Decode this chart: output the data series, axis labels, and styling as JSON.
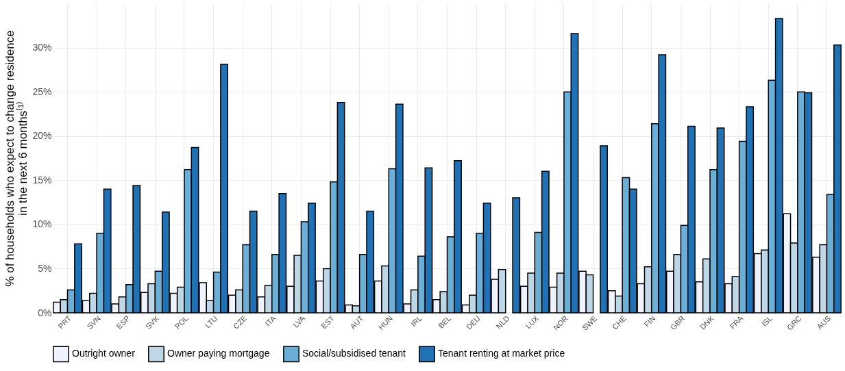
{
  "chart_data": {
    "type": "bar",
    "ylabel": "% of households who expect to change residence\nin the next 6 months⁽¹⁾",
    "categories": [
      "PRT",
      "SVN",
      "ESP",
      "SVK",
      "POL",
      "LTU",
      "CZE",
      "ITA",
      "LVA",
      "EST",
      "AUT",
      "HUN",
      "IRL",
      "BEL",
      "DEU",
      "NLD",
      "LUX",
      "NOR",
      "SWE",
      "CHE",
      "FIN",
      "GBR",
      "DNK",
      "FRA",
      "ISL",
      "GRC",
      "AUS"
    ],
    "series": [
      {
        "name": "Outright owner",
        "color": "#eff3ff",
        "values": [
          1.2,
          1.4,
          1.0,
          2.3,
          2.2,
          3.4,
          2.0,
          1.8,
          3.0,
          3.6,
          0.9,
          3.6,
          1.0,
          1.5,
          0.9,
          3.8,
          3.0,
          2.9,
          4.7,
          2.5,
          3.3,
          4.7,
          3.5,
          3.3,
          6.7,
          11.2,
          6.3
        ]
      },
      {
        "name": "Owner paying mortgage",
        "color": "#bdd7e7",
        "values": [
          1.5,
          2.2,
          1.8,
          3.3,
          2.9,
          1.4,
          2.6,
          3.1,
          6.5,
          5.0,
          0.8,
          5.3,
          2.6,
          2.4,
          2.0,
          4.9,
          4.5,
          4.5,
          4.3,
          1.9,
          5.2,
          6.6,
          6.1,
          4.1,
          7.1,
          7.9,
          7.7
        ]
      },
      {
        "name": "Social/subsidised tenant",
        "color": "#6baed6",
        "values": [
          2.6,
          9.0,
          3.2,
          4.7,
          16.2,
          4.6,
          7.7,
          6.6,
          10.3,
          14.8,
          6.6,
          16.3,
          6.4,
          8.6,
          9.0,
          null,
          9.1,
          25.0,
          null,
          15.3,
          21.4,
          9.9,
          16.2,
          19.4,
          26.3,
          25.0,
          13.4
        ]
      },
      {
        "name": "Tenant renting at market price",
        "color": "#2171b5",
        "values": [
          7.8,
          14.0,
          14.4,
          11.4,
          18.7,
          28.1,
          11.5,
          13.5,
          12.4,
          23.8,
          11.5,
          23.6,
          16.4,
          17.2,
          12.4,
          13.0,
          16.0,
          31.6,
          18.9,
          14.0,
          29.2,
          21.1,
          20.9,
          23.3,
          33.3,
          24.9,
          30.3
        ]
      }
    ],
    "ylim": [
      0,
      35
    ],
    "yticks": [
      {
        "value": 0,
        "label": "0%"
      },
      {
        "value": 5,
        "label": "5%"
      },
      {
        "value": 10,
        "label": "10%"
      },
      {
        "value": 15,
        "label": "15%"
      },
      {
        "value": 20,
        "label": "20%"
      },
      {
        "value": 25,
        "label": "25%"
      },
      {
        "value": 30,
        "label": "30%"
      }
    ],
    "grid": true,
    "legend": "bottom"
  }
}
